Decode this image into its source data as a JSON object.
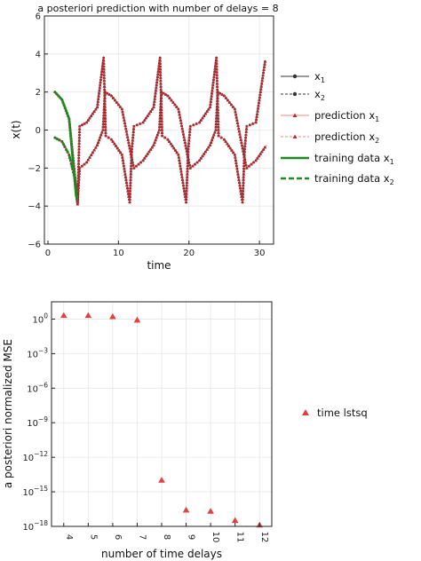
{
  "chart_data": [
    {
      "type": "line",
      "title": "a posteriori prediction with number of delays = 8",
      "xlabel": "time",
      "ylabel": "x(t)",
      "xlim": [
        -0.5,
        32
      ],
      "ylim": [
        -6,
        6
      ],
      "xticks": [
        "0",
        "10",
        "20",
        "30"
      ],
      "yticks": [
        "6",
        "4",
        "2",
        "0",
        "−2",
        "−4",
        "−6"
      ],
      "grid": true,
      "legend_position": "right",
      "colors": {
        "truth": "#333333",
        "prediction": "#c0292d",
        "prediction_light": "#e88a84",
        "training": "#1f8a1f"
      },
      "series": [
        {
          "name": "truth x1",
          "base": "x",
          "sub": "1",
          "style": "solid-marker-circle",
          "color": "#333333",
          "x": [
            1,
            2,
            3,
            4.2,
            4.5,
            5.5,
            7,
            7.8,
            8.1,
            9,
            10.5,
            12,
            12.2,
            13.5,
            15,
            15.8,
            16.1,
            17,
            18.5,
            20,
            20.2,
            21.5,
            23,
            23.8,
            24.1,
            25,
            26.5,
            28,
            28.2,
            29.5,
            31
          ],
          "y": [
            2.0,
            1.6,
            0.6,
            -3.8,
            -2.0,
            -1.7,
            -0.8,
            0.0,
            2.0,
            1.8,
            1.1,
            -1.7,
            -2.0,
            -1.6,
            -0.8,
            0.0,
            2.0,
            1.8,
            1.1,
            -1.7,
            -2.0,
            -1.6,
            -0.8,
            0.0,
            2.0,
            1.8,
            1.1,
            -1.7,
            -2.0,
            -1.6,
            -0.8
          ]
        },
        {
          "name": "truth x2",
          "base": "x",
          "sub": "2",
          "style": "dashed-marker-circle",
          "color": "#333333",
          "x": [
            1,
            2,
            3,
            3.8,
            4.2,
            4.5,
            5.5,
            7,
            7.9,
            8.2,
            9,
            10.5,
            11.6,
            11.9,
            12.2,
            13.5,
            15,
            15.9,
            16.2,
            17,
            18.5,
            19.6,
            19.9,
            20.2,
            21.5,
            23,
            23.9,
            24.2,
            25,
            26.5,
            27.6,
            27.9,
            28.2,
            29.5,
            30.8,
            31
          ],
          "y": [
            -0.4,
            -0.6,
            -1.3,
            -2.5,
            -3.9,
            0.2,
            0.4,
            1.2,
            3.8,
            -0.3,
            -0.5,
            -1.3,
            -3.8,
            -1.0,
            0.2,
            0.4,
            1.2,
            3.8,
            -0.3,
            -0.5,
            -1.3,
            -3.8,
            -1.0,
            0.2,
            0.4,
            1.2,
            3.8,
            -0.3,
            -0.5,
            -1.3,
            -3.8,
            -1.0,
            0.2,
            0.4,
            3.6,
            3.6
          ]
        },
        {
          "name": "prediction x1",
          "base": "prediction x",
          "sub": "1",
          "style": "solid-marker-triangle",
          "color": "#e88a84",
          "x": [
            1,
            2,
            3,
            4.2,
            4.5,
            5.5,
            7,
            7.8,
            8.1,
            9,
            10.5,
            12,
            12.2,
            13.5,
            15,
            15.8,
            16.1,
            17,
            18.5,
            20,
            20.2,
            21.5,
            23,
            23.8,
            24.1,
            25,
            26.5,
            28,
            28.2,
            29.5,
            31
          ],
          "y": [
            2.0,
            1.6,
            0.6,
            -3.8,
            -2.0,
            -1.7,
            -0.8,
            0.0,
            2.0,
            1.8,
            1.1,
            -1.7,
            -2.0,
            -1.6,
            -0.8,
            0.0,
            2.0,
            1.8,
            1.1,
            -1.7,
            -2.0,
            -1.6,
            -0.8,
            0.0,
            2.0,
            1.8,
            1.1,
            -1.7,
            -2.0,
            -1.6,
            -0.8
          ]
        },
        {
          "name": "prediction x2",
          "base": "prediction x",
          "sub": "2",
          "style": "dashed-marker-triangle",
          "color": "#e88a84",
          "x": [
            1,
            2,
            3,
            3.8,
            4.2,
            4.5,
            5.5,
            7,
            7.9,
            8.2,
            9,
            10.5,
            11.6,
            11.9,
            12.2,
            13.5,
            15,
            15.9,
            16.2,
            17,
            18.5,
            19.6,
            19.9,
            20.2,
            21.5,
            23,
            23.9,
            24.2,
            25,
            26.5,
            27.6,
            27.9,
            28.2,
            29.5,
            30.8,
            31
          ],
          "y": [
            -0.4,
            -0.6,
            -1.3,
            -2.5,
            -3.9,
            0.2,
            0.4,
            1.2,
            3.8,
            -0.3,
            -0.5,
            -1.3,
            -3.8,
            -1.0,
            0.2,
            0.4,
            1.2,
            3.8,
            -0.3,
            -0.5,
            -1.3,
            -3.8,
            -1.0,
            0.2,
            0.4,
            1.2,
            3.8,
            -0.3,
            -0.5,
            -1.3,
            -3.8,
            -1.0,
            0.2,
            0.4,
            3.6,
            3.6
          ]
        },
        {
          "name": "training data x1",
          "base": "training data x",
          "sub": "1",
          "style": "solid-thick",
          "color": "#1f8a1f",
          "x": [
            1,
            2,
            3,
            4.0
          ],
          "y": [
            2.0,
            1.6,
            0.6,
            -3.5
          ]
        },
        {
          "name": "training data x2",
          "base": "training data x",
          "sub": "2",
          "style": "dashed-thick",
          "color": "#1f8a1f",
          "x": [
            1,
            2,
            3,
            3.8,
            4.1
          ],
          "y": [
            -0.4,
            -0.6,
            -1.3,
            -2.5,
            -3.7
          ]
        }
      ]
    },
    {
      "type": "scatter",
      "title": "",
      "xlabel": "number of time delays",
      "ylabel": "a posteriori normalized MSE",
      "yscale": "log",
      "ylim_exponent": [
        -18,
        1.5
      ],
      "xlim": [
        3.5,
        12.5
      ],
      "categories": [
        "4",
        "5",
        "6",
        "7",
        "8",
        "9",
        "10",
        "11",
        "12"
      ],
      "yticks": [
        {
          "base": "10",
          "exp": "0",
          "value": 0
        },
        {
          "base": "10",
          "exp": "−3",
          "value": -3
        },
        {
          "base": "10",
          "exp": "−6",
          "value": -6
        },
        {
          "base": "10",
          "exp": "−9",
          "value": -9
        },
        {
          "base": "10",
          "exp": "−12",
          "value": -12
        },
        {
          "base": "10",
          "exp": "−15",
          "value": -15
        },
        {
          "base": "10",
          "exp": "−18",
          "value": -18
        }
      ],
      "grid": true,
      "legend_position": "right",
      "series": [
        {
          "name": "time lstsq",
          "color": "#e14040",
          "x": [
            4,
            5,
            6,
            7,
            8,
            9,
            10,
            11,
            12
          ],
          "y_exponent": [
            0.3,
            0.3,
            0.2,
            -0.1,
            -14.0,
            -16.6,
            -16.7,
            -17.5,
            -17.9
          ]
        }
      ]
    }
  ]
}
